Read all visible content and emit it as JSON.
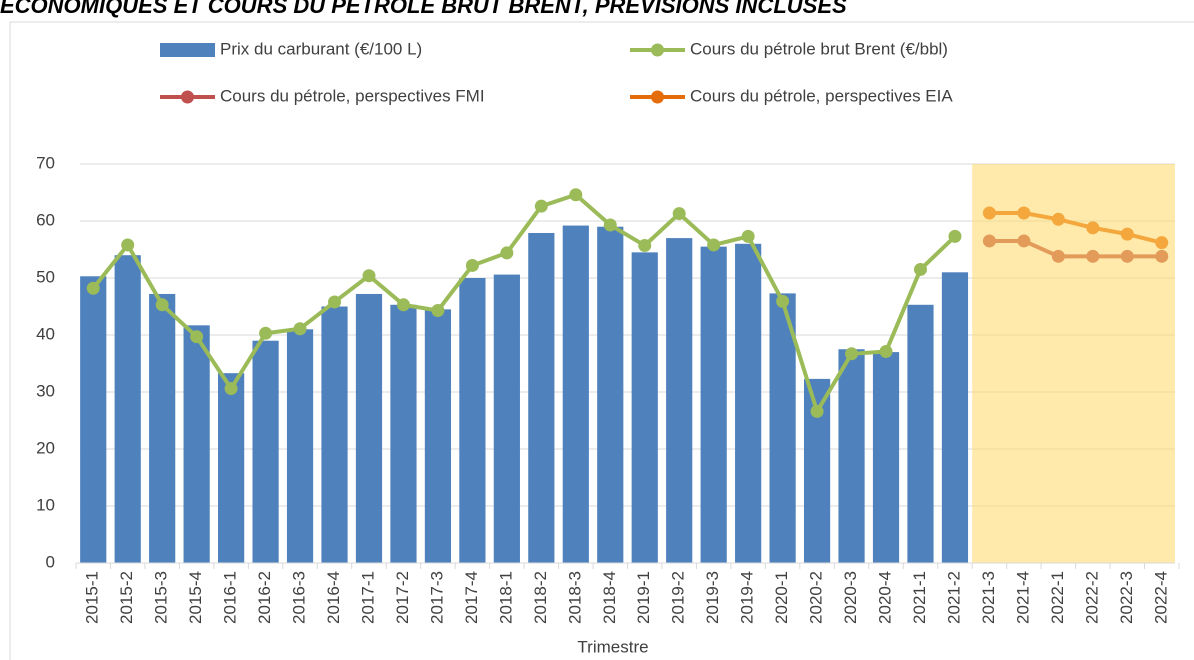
{
  "chart_data": {
    "type": "bar",
    "title": "ÉCONOMIQUES ET COURS DU PÉTROLE BRUT BRENT, PRÉVISIONS INCLUSES",
    "x_label": "Trimestre",
    "categories": [
      "2015-1",
      "2015-2",
      "2015-3",
      "2015-4",
      "2016-1",
      "2016-2",
      "2016-3",
      "2016-4",
      "2017-1",
      "2017-2",
      "2017-3",
      "2017-4",
      "2018-1",
      "2018-2",
      "2018-3",
      "2018-4",
      "2019-1",
      "2019-2",
      "2019-3",
      "2019-4",
      "2020-1",
      "2020-2",
      "2020-3",
      "2020-4",
      "2021-1",
      "2021-2",
      "2021-3",
      "2021-4",
      "2022-1",
      "2022-2",
      "2022-3",
      "2022-4"
    ],
    "series": [
      {
        "name": "Prix du carburant (€/100 L)",
        "type": "bar",
        "color": "#4f81bd",
        "values": [
          50.3,
          54,
          47.2,
          41.7,
          33.3,
          39,
          41,
          45,
          47.2,
          45.3,
          44.5,
          50,
          50.6,
          57.9,
          59.2,
          59,
          54.5,
          57,
          55.5,
          56,
          47.3,
          32.3,
          37.5,
          37,
          45.3,
          51,
          null,
          null,
          null,
          null,
          null,
          null
        ]
      },
      {
        "name": "Cours du pétrole brut Brent (€/bbl)",
        "type": "line",
        "color": "#9bbb59",
        "values": [
          48.2,
          55.8,
          45.3,
          39.7,
          30.6,
          40.3,
          41.1,
          45.8,
          50.4,
          45.3,
          44.3,
          52.2,
          54.4,
          62.6,
          64.6,
          59.3,
          55.7,
          61.3,
          55.8,
          57.3,
          45.9,
          26.6,
          36.7,
          37.1,
          51.5,
          57.3,
          null,
          null,
          null,
          null,
          null,
          null
        ]
      },
      {
        "name": "Cours du pétrole, perspectives FMI",
        "type": "line",
        "color": "#c0504d",
        "values": [
          null,
          null,
          null,
          null,
          null,
          null,
          null,
          null,
          null,
          null,
          null,
          null,
          null,
          null,
          null,
          null,
          null,
          null,
          null,
          null,
          null,
          null,
          null,
          null,
          null,
          null,
          56.5,
          56.5,
          53.8,
          53.8,
          53.8,
          53.8
        ]
      },
      {
        "name": "Cours du pétrole, perspectives EIA",
        "type": "line",
        "color": "#e46c0a",
        "values": [
          null,
          null,
          null,
          null,
          null,
          null,
          null,
          null,
          null,
          null,
          null,
          null,
          null,
          null,
          null,
          null,
          null,
          null,
          null,
          null,
          null,
          null,
          null,
          null,
          null,
          null,
          61.4,
          61.4,
          60.3,
          58.8,
          57.7,
          56.2
        ]
      }
    ],
    "ylim": [
      0,
      70
    ],
    "yticks": [
      0,
      10,
      20,
      30,
      40,
      50,
      60,
      70
    ],
    "grid": true,
    "highlight_color": "#ffd966"
  }
}
